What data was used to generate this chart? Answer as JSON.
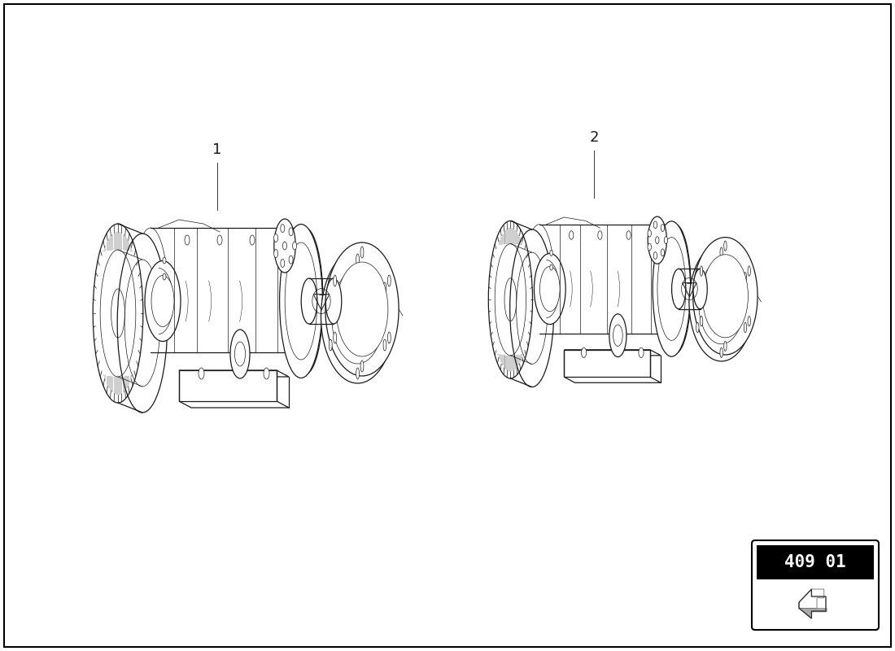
{
  "background_color": "#ffffff",
  "border_color": "#000000",
  "line_color": "#1a1a1a",
  "label1": "1",
  "label2": "2",
  "part_number": "409 01",
  "badge_bg": "#000000",
  "badge_text_color": "#ffffff",
  "badge_border_color": "#000000",
  "fig_width": 11.0,
  "fig_height": 8.0,
  "dpi": 100,
  "lw_main": 0.9,
  "lw_thin": 0.5,
  "lw_thick": 1.3
}
